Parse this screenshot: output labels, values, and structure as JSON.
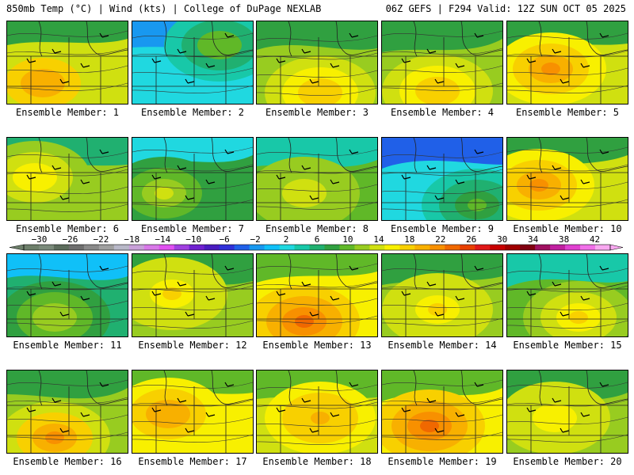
{
  "header": {
    "left": "850mb Temp (°C) | Wind (kts) | College of DuPage NEXLAB",
    "right": "06Z GEFS | F294 Valid: 12Z SUN OCT 05 2025"
  },
  "chart_data": {
    "type": "heatmap",
    "title": "850mb Temp (°C) | Wind (kts)",
    "source": "College of DuPage NEXLAB",
    "model": "06Z GEFS",
    "forecast_hour": "F294",
    "valid": "12Z SUN OCT 05 2025",
    "colorbar": {
      "ticks": [
        -30,
        -26,
        -22,
        -18,
        -14,
        -10,
        -6,
        -2,
        2,
        6,
        10,
        14,
        18,
        22,
        26,
        30,
        34,
        38,
        42
      ],
      "range": [
        -32,
        44
      ],
      "colors": [
        "#6d7f6a",
        "#7a8a7a",
        "#5c6c5c",
        "#6e6e6e",
        "#8a8a8a",
        "#a0a0a0",
        "#b8b8c8",
        "#c8a0d8",
        "#d878e8",
        "#e050f0",
        "#a040e0",
        "#7020d0",
        "#4a1cc0",
        "#3030d8",
        "#2060e8",
        "#1898f0",
        "#10c0f8",
        "#20d8e0",
        "#18c8a8",
        "#20b070",
        "#30a040",
        "#60b828",
        "#98cc20",
        "#d0e010",
        "#f8f000",
        "#f8d000",
        "#f8b000",
        "#f89000",
        "#f06800",
        "#e84000",
        "#e01818",
        "#c80000",
        "#a00000",
        "#800010",
        "#a01060",
        "#c020a0",
        "#e040d0",
        "#f070e8",
        "#f8a8f0"
      ]
    },
    "members": [
      {
        "label": "Ensemble Member: 1",
        "mean_temp": 13,
        "warm_core": 20
      },
      {
        "label": "Ensemble Member: 2",
        "mean_temp": 3,
        "warm_core": 10
      },
      {
        "label": "Ensemble Member: 3",
        "mean_temp": 12,
        "warm_core": 18
      },
      {
        "label": "Ensemble Member: 4",
        "mean_temp": 12,
        "warm_core": 18
      },
      {
        "label": "Ensemble Member: 5",
        "mean_temp": 13,
        "warm_core": 21
      },
      {
        "label": "Ensemble Member: 6",
        "mean_temp": 11,
        "warm_core": 16
      },
      {
        "label": "Ensemble Member: 7",
        "mean_temp": 7,
        "warm_core": 13
      },
      {
        "label": "Ensemble Member: 8",
        "mean_temp": 10,
        "warm_core": 14
      },
      {
        "label": "Ensemble Member: 9",
        "mean_temp": 2,
        "warm_core": 9
      },
      {
        "label": "Ensemble Member: 10",
        "mean_temp": 13,
        "warm_core": 21
      },
      {
        "label": "Ensemble Member: 11",
        "mean_temp": 6,
        "warm_core": 12
      },
      {
        "label": "Ensemble Member: 12",
        "mean_temp": 12,
        "warm_core": 17
      },
      {
        "label": "Ensemble Member: 13",
        "mean_temp": 15,
        "warm_core": 23
      },
      {
        "label": "Ensemble Member: 14",
        "mean_temp": 12,
        "warm_core": 17
      },
      {
        "label": "Ensemble Member: 15",
        "mean_temp": 10,
        "warm_core": 17
      },
      {
        "label": "Ensemble Member: 16",
        "mean_temp": 12,
        "warm_core": 22
      },
      {
        "label": "Ensemble Member: 17",
        "mean_temp": 15,
        "warm_core": 20
      },
      {
        "label": "Ensemble Member: 18",
        "mean_temp": 14,
        "warm_core": 19
      },
      {
        "label": "Ensemble Member: 19",
        "mean_temp": 15,
        "warm_core": 23
      },
      {
        "label": "Ensemble Member: 20",
        "mean_temp": 12,
        "warm_core": 16
      }
    ]
  }
}
